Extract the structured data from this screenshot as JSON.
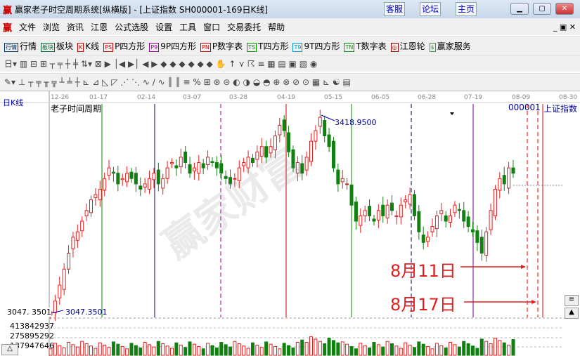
{
  "window": {
    "title": "赢家老子时空周期系统[纵横版] - [上证指数  SH000001-169日K线]",
    "buttons": [
      "客服",
      "论坛",
      "主页"
    ]
  },
  "menu": [
    "文件",
    "浏览",
    "资讯",
    "江恩",
    "公式选股",
    "设置",
    "工具",
    "窗口",
    "交易委托",
    "帮助"
  ],
  "toolbar": [
    {
      "icon": "行情",
      "label": "行情"
    },
    {
      "icon": "板块",
      "label": "板块"
    },
    {
      "icon": "K",
      "label": "K线"
    },
    {
      "icon": "PS",
      "label": "P四方形"
    },
    {
      "icon": "P9",
      "label": "9P四方形"
    },
    {
      "icon": "PN",
      "label": "P数字表"
    },
    {
      "icon": "TS",
      "label": "T四方形"
    },
    {
      "icon": "T9",
      "label": "9T四方形"
    },
    {
      "icon": "TN",
      "label": "T数字表"
    },
    {
      "icon": "◎",
      "label": "江恩轮"
    },
    {
      "icon": "$",
      "label": "赢家服务"
    }
  ],
  "chart": {
    "period_label": "日K线",
    "indicator_title": "老子时间周期",
    "code": "000001",
    "name": "上证指数",
    "dates": [
      "12-26",
      "01-17",
      "02-14",
      "03-07",
      "03-28",
      "04-19",
      "05-15",
      "06-05",
      "06-28",
      "07-19",
      "08-09",
      "08-30"
    ],
    "high_label": "3418.9500",
    "low_label": "3047.3501",
    "low_axis": "3047. 3501",
    "volume_axis": [
      "413842937",
      "275895292",
      "137947646"
    ],
    "annotations": [
      "8月11日",
      "8月17日"
    ],
    "watermark": "赢家财富 股票软件 江恩工具 www.yingjia360.com QQ:100800360"
  },
  "chart_data": {
    "type": "candlestick",
    "ylim": [
      3047.35,
      3418.95
    ],
    "close": [
      3050,
      3070,
      3100,
      3130,
      3160,
      3190,
      3200,
      3220,
      3240,
      3260,
      3270,
      3280,
      3300,
      3320,
      3310,
      3290,
      3300,
      3310,
      3300,
      3290,
      3280,
      3290,
      3300,
      3310,
      3290,
      3300,
      3320,
      3330,
      3320,
      3340,
      3330,
      3310,
      3320,
      3330,
      3320,
      3340,
      3330,
      3320,
      3310,
      3300,
      3290,
      3300,
      3320,
      3330,
      3340,
      3330,
      3350,
      3360,
      3340,
      3360,
      3380,
      3400,
      3390,
      3350,
      3320,
      3330,
      3310,
      3340,
      3370,
      3390,
      3415,
      3380,
      3360,
      3320,
      3290,
      3300,
      3290,
      3250,
      3220,
      3230,
      3240,
      3230,
      3220,
      3240,
      3230,
      3250,
      3240,
      3230,
      3250,
      3260,
      3270,
      3230,
      3200,
      3180,
      3190,
      3210,
      3230,
      3240,
      3220,
      3230,
      3250,
      3240,
      3220,
      3210,
      3200,
      3180,
      3160,
      3200,
      3240,
      3280,
      3300,
      3290,
      3320,
      3310
    ],
    "volume_max": 413842937
  },
  "colors": {
    "up": "#e02020",
    "down": "#108010",
    "accent": "#000099"
  }
}
